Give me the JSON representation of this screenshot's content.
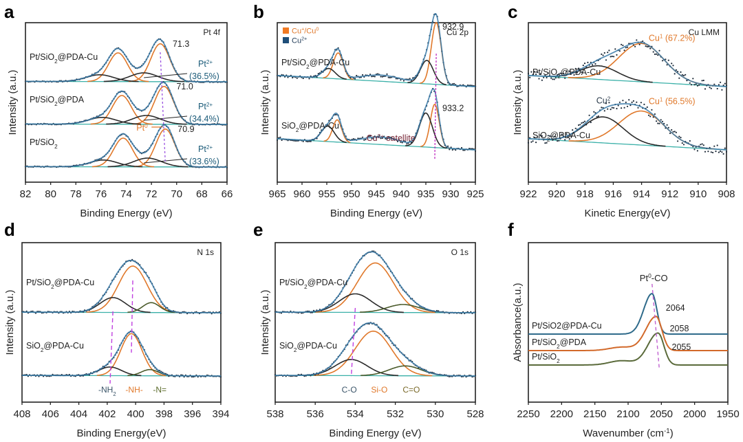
{
  "chart_data": [
    {
      "panel": "a",
      "type": "line",
      "title": "Pt 4f",
      "xlabel": "Binding Energy (eV)",
      "ylabel": "Intensity (a.u.)",
      "xlim": [
        82,
        66
      ],
      "xticks": [
        82,
        80,
        78,
        76,
        74,
        72,
        70,
        68,
        66
      ],
      "grid": false,
      "series": [
        {
          "name": "Pt/SiO2@PDA-Cu",
          "label": "Pt/SiO",
          "label_sub": "2",
          "label_tail": "@PDA-Cu",
          "offset": 2.0,
          "components": [
            {
              "type": "Pt0",
              "center": 71.3,
              "amp": 0.95,
              "width": 0.75,
              "color": "#e0782a"
            },
            {
              "type": "Pt0",
              "center": 74.65,
              "amp": 0.72,
              "width": 0.75,
              "color": "#e0782a"
            },
            {
              "type": "Pt2+",
              "center": 72.6,
              "amp": 0.22,
              "width": 1.1,
              "color": "#2a2a2a"
            },
            {
              "type": "Pt2+",
              "center": 76.1,
              "amp": 0.17,
              "width": 1.1,
              "color": "#2a2a2a"
            }
          ],
          "peak_label": "71.3",
          "pt2_percent": "(36.5%)"
        },
        {
          "name": "Pt/SiO2@PDA",
          "label": "Pt/SiO",
          "label_sub": "2",
          "label_tail": "@PDA",
          "offset": 1.0,
          "components": [
            {
              "type": "Pt0",
              "center": 71.0,
              "amp": 0.95,
              "width": 0.75,
              "color": "#e0782a"
            },
            {
              "type": "Pt0",
              "center": 74.35,
              "amp": 0.72,
              "width": 0.75,
              "color": "#e0782a"
            },
            {
              "type": "Pt2+",
              "center": 72.4,
              "amp": 0.22,
              "width": 1.1,
              "color": "#2a2a2a"
            },
            {
              "type": "Pt2+",
              "center": 75.9,
              "amp": 0.17,
              "width": 1.1,
              "color": "#2a2a2a"
            }
          ],
          "peak_label": "71.0",
          "pt2_percent": "(34.4%)"
        },
        {
          "name": "Pt/SiO2",
          "label": "Pt/SiO",
          "label_sub": "2",
          "label_tail": "",
          "offset": 0.0,
          "components": [
            {
              "type": "Pt0",
              "center": 70.9,
              "amp": 0.95,
              "width": 0.75,
              "color": "#e0782a"
            },
            {
              "type": "Pt0",
              "center": 74.25,
              "amp": 0.72,
              "width": 0.75,
              "color": "#e0782a"
            },
            {
              "type": "Pt2+",
              "center": 72.3,
              "amp": 0.22,
              "width": 1.1,
              "color": "#2a2a2a"
            },
            {
              "type": "Pt2+",
              "center": 75.8,
              "amp": 0.17,
              "width": 1.1,
              "color": "#2a2a2a"
            }
          ],
          "peak_label": "70.9",
          "pt2_percent": "(33.6%)"
        }
      ],
      "annotations": {
        "pt2_label": "Pt",
        "pt2_sup": "2+",
        "pt0_label": "Pt",
        "pt0_sup": "0"
      }
    },
    {
      "panel": "b",
      "type": "line",
      "title": "Cu 2p",
      "xlabel": "Binding Energy (eV)",
      "ylabel": "Intensity (a.u.)",
      "xlim": [
        965,
        925
      ],
      "xticks": [
        965,
        960,
        955,
        950,
        945,
        940,
        935,
        930,
        925
      ],
      "grid": false,
      "legend": [
        {
          "label": "Cu",
          "sup": "+",
          "tail": "/Cu",
          "tail_sup": "0",
          "color": "#f07a24"
        },
        {
          "label": "Cu",
          "sup": "2+",
          "tail": "",
          "tail_sup": "",
          "color": "#1f4e79"
        }
      ],
      "legend_position": "top-left",
      "series": [
        {
          "name": "Pt/SiO2@PDA-Cu",
          "label": "Pt/SiO",
          "label_sub": "2",
          "label_tail": "@PDA-Cu",
          "offset": 1.15,
          "components": [
            {
              "type": "Cu+/Cu0",
              "center": 932.9,
              "amp": 1.0,
              "width": 1.0,
              "color": "#e0782a"
            },
            {
              "type": "Cu+/Cu0",
              "center": 952.7,
              "amp": 0.42,
              "width": 1.0,
              "color": "#e0782a"
            },
            {
              "type": "Cu2+",
              "center": 934.8,
              "amp": 0.38,
              "width": 1.3,
              "color": "#2a2a2a"
            },
            {
              "type": "Cu2+",
              "center": 954.6,
              "amp": 0.16,
              "width": 1.3,
              "color": "#2a2a2a"
            },
            {
              "type": "satellite",
              "center": 944.0,
              "amp": 0.1,
              "width": 4.0,
              "color": "none"
            }
          ],
          "peak_label": "932.9"
        },
        {
          "name": "SiO2@PDA-Cu",
          "label": "SiO",
          "label_sub": "2",
          "label_tail": "@PDA-Cu",
          "offset": 0.0,
          "components": [
            {
              "type": "Cu+/Cu0",
              "center": 933.2,
              "amp": 0.7,
              "width": 0.9,
              "color": "#e0782a"
            },
            {
              "type": "Cu+/Cu0",
              "center": 952.9,
              "amp": 0.36,
              "width": 0.9,
              "color": "#e0782a"
            },
            {
              "type": "Cu2+",
              "center": 935.0,
              "amp": 0.55,
              "width": 1.3,
              "color": "#2a2a2a"
            },
            {
              "type": "Cu2+",
              "center": 954.8,
              "amp": 0.25,
              "width": 1.3,
              "color": "#2a2a2a"
            },
            {
              "type": "satellite",
              "center": 944.0,
              "amp": 0.12,
              "width": 4.0,
              "color": "none"
            }
          ],
          "peak_label": "933.2"
        }
      ],
      "annotations": {
        "satellite_label": "Cu",
        "satellite_sup": "2+",
        "satellite_tail": " satellite"
      }
    },
    {
      "panel": "c",
      "type": "line",
      "title": "Cu LMM",
      "xlabel": "Kinetic Energy(eV)",
      "ylabel": "Intensity (a.u.)",
      "xlim": [
        922,
        908
      ],
      "xticks": [
        922,
        920,
        918,
        916,
        914,
        912,
        910,
        908
      ],
      "grid": false,
      "series": [
        {
          "name": "Pt/SiO2@PDA-Cu",
          "label": "Pt/SiO",
          "label_sub": "2",
          "label_tail": "@PDA-Cu",
          "offset": 1.05,
          "components": [
            {
              "type": "Cu1",
              "center": 914.0,
              "amp": 0.62,
              "width": 1.6,
              "color": "#e0782a"
            },
            {
              "type": "Cu2",
              "center": 917.0,
              "amp": 0.22,
              "width": 1.3,
              "color": "#2a2a2a"
            }
          ],
          "cu1_label": "Cu",
          "cu1_sup": "1",
          "cu1_percent": " (67.2%)"
        },
        {
          "name": "SiO2@PDA-Cu",
          "label": "SiO",
          "label_sub": "2",
          "label_tail": "@PDA-Cu",
          "offset": 0.0,
          "components": [
            {
              "type": "Cu1",
              "center": 914.0,
              "amp": 0.55,
              "width": 1.6,
              "color": "#e0782a"
            },
            {
              "type": "Cu2",
              "center": 916.7,
              "amp": 0.42,
              "width": 1.4,
              "color": "#2a2a2a"
            }
          ],
          "cu1_label": "Cu",
          "cu1_sup": "1",
          "cu1_percent": " (56.5%)",
          "cu2_label": "Cu",
          "cu2_sup": "2"
        }
      ]
    },
    {
      "panel": "d",
      "type": "line",
      "title": "N 1s",
      "xlabel": "Binding Energy(eV)",
      "ylabel": "Intensity (a.u.)",
      "xlim": [
        408,
        394
      ],
      "xticks": [
        408,
        406,
        404,
        402,
        400,
        398,
        396,
        394
      ],
      "grid": false,
      "series": [
        {
          "name": "Pt/SiO2@PDA-Cu",
          "label": "Pt/SiO",
          "label_sub": "2",
          "label_tail": "@PDA-Cu",
          "offset": 0.95,
          "components": [
            {
              "type": "-NH-",
              "center": 400.2,
              "amp": 0.75,
              "width": 1.0,
              "color": "#e0782a"
            },
            {
              "type": "-NH2",
              "center": 401.6,
              "amp": 0.24,
              "width": 0.9,
              "color": "#2a2a2a"
            },
            {
              "type": "-N=",
              "center": 398.9,
              "amp": 0.16,
              "width": 0.6,
              "color": "#4a5a2a"
            }
          ]
        },
        {
          "name": "SiO2@PDA-Cu",
          "label": "SiO",
          "label_sub": "2",
          "label_tail": "@PDA-Cu",
          "offset": 0.0,
          "components": [
            {
              "type": "-NH-",
              "center": 400.3,
              "amp": 0.68,
              "width": 0.75,
              "color": "#e0782a"
            },
            {
              "type": "-NH2",
              "center": 401.8,
              "amp": 0.14,
              "width": 0.8,
              "color": "#2a2a2a"
            },
            {
              "type": "-N=",
              "center": 399.0,
              "amp": 0.1,
              "width": 0.6,
              "color": "#4a5a2a"
            }
          ]
        }
      ],
      "component_labels": [
        {
          "text": "-NH",
          "sub": "2",
          "color": "#3a5468"
        },
        {
          "text": "-NH-",
          "sub": "",
          "color": "#e0782a"
        },
        {
          "text": "-N=",
          "sub": "",
          "color": "#5a6a2a"
        }
      ]
    },
    {
      "panel": "e",
      "type": "line",
      "title": "O 1s",
      "xlabel": "Binding Energy (eV)",
      "ylabel": "Intensity (a.u.)",
      "xlim": [
        538,
        528
      ],
      "xticks": [
        538,
        536,
        534,
        532,
        530,
        528
      ],
      "grid": false,
      "series": [
        {
          "name": "Pt/SiO2@PDA-Cu",
          "label": "Pt/SiO",
          "label_sub": "2",
          "label_tail": "@PDA-Cu",
          "offset": 1.0,
          "components": [
            {
              "type": "Si-O",
              "center": 533.0,
              "amp": 0.8,
              "width": 0.9,
              "color": "#e0782a"
            },
            {
              "type": "C-O",
              "center": 534.0,
              "amp": 0.3,
              "width": 0.8,
              "color": "#2a2a2a"
            },
            {
              "type": "C=O",
              "center": 531.6,
              "amp": 0.13,
              "width": 0.8,
              "color": "#4a5a2a"
            }
          ]
        },
        {
          "name": "SiO2@PDA-Cu",
          "label": "SiO",
          "label_sub": "2",
          "label_tail": "@PDA-Cu",
          "offset": 0.0,
          "components": [
            {
              "type": "Si-O",
              "center": 533.1,
              "amp": 0.72,
              "width": 0.9,
              "color": "#e0782a"
            },
            {
              "type": "C-O",
              "center": 534.2,
              "amp": 0.26,
              "width": 0.8,
              "color": "#2a2a2a"
            },
            {
              "type": "C=O",
              "center": 531.5,
              "amp": 0.16,
              "width": 0.8,
              "color": "#4a5a2a"
            }
          ]
        }
      ],
      "component_labels": [
        {
          "text": "C-O",
          "color": "#3a5468"
        },
        {
          "text": "Si-O",
          "color": "#e0782a"
        },
        {
          "text": "C=O",
          "color": "#7a6a2a"
        }
      ]
    },
    {
      "panel": "f",
      "type": "line",
      "title": "",
      "xlabel": "Wavenumber (cm",
      "xlabel_sup": "-1",
      "xlabel_tail": ")",
      "ylabel": "Absorbance(a.u.)",
      "xlim": [
        2250,
        1950
      ],
      "xticks": [
        2250,
        2200,
        2150,
        2100,
        2050,
        2000,
        1950
      ],
      "grid": false,
      "series": [
        {
          "name": "Pt/SiO2@PDA-Cu",
          "label": "Pt/SiO2@PDA-Cu",
          "label_sub": "",
          "label_tail": "",
          "color": "#2e6a8a",
          "offset": 2.15,
          "peak_center": 2064,
          "peak_amp": 0.95,
          "peak_width": 9,
          "shoulder_amp": 0.0,
          "peak_label": "2064"
        },
        {
          "name": "Pt/SiO2@PDA",
          "label": "Pt/SiO",
          "label_sub": "2",
          "label_tail": "@PDA",
          "color": "#d2692a",
          "offset": 1.05,
          "peak_center": 2058,
          "peak_amp": 0.8,
          "peak_width": 11,
          "shoulder_amp": 0.08,
          "peak_label": "2058"
        },
        {
          "name": "Pt/SiO2",
          "label": "Pt/SiO",
          "label_sub": "2",
          "label_tail": "",
          "color": "#5a6a3a",
          "offset": 0.0,
          "peak_center": 2055,
          "peak_amp": 0.75,
          "peak_width": 11,
          "shoulder_amp": 0.1,
          "peak_label": "2055"
        }
      ],
      "annotations": {
        "peak_assign": "Pt",
        "peak_assign_sup": "0",
        "peak_assign_tail": "-CO"
      }
    }
  ],
  "panel_letters": [
    "a",
    "b",
    "c",
    "d",
    "e",
    "f"
  ]
}
